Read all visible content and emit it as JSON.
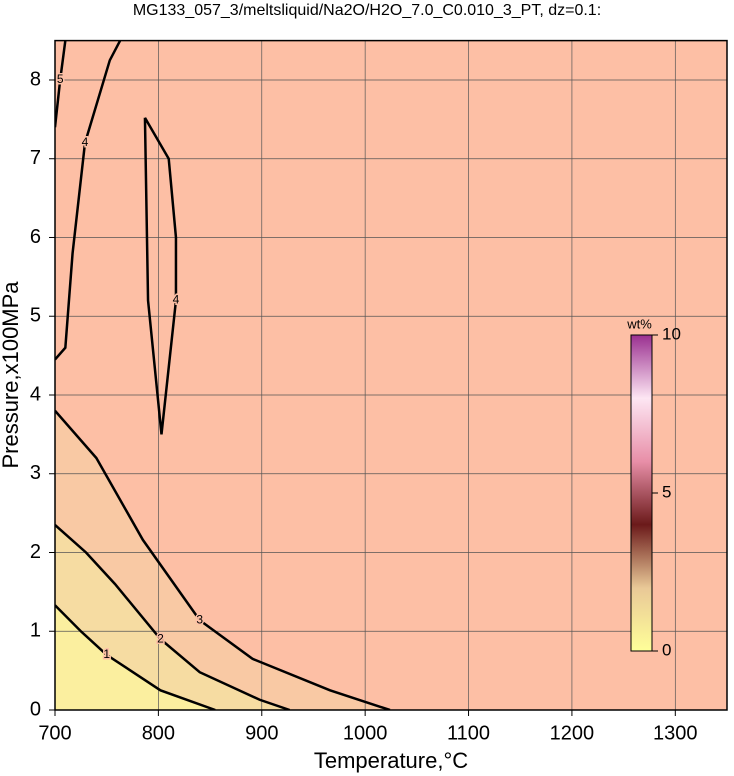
{
  "chart_data": {
    "type": "contour",
    "title": "MG133_057_3/meltsliquid/Na2O/H2O_7.0_C0.010_3_PT, dz=0.1:",
    "x_label": "Temperature,°C",
    "y_label": "Pressure,x100MPa",
    "xlim": [
      700,
      1350
    ],
    "ylim": [
      0,
      8.5
    ],
    "xticks": [
      700,
      800,
      900,
      1000,
      1100,
      1200,
      1300
    ],
    "yticks": [
      0,
      1,
      2,
      3,
      4,
      5,
      6,
      7,
      8
    ],
    "grid": true,
    "background": "#fdbfa5",
    "contours": [
      {
        "level": 3,
        "fill": "#f9c9a4",
        "x": [
          700,
          740,
          785,
          840,
          891,
          966,
          1024
        ],
        "y": [
          3.8,
          3.2,
          2.16,
          1.14,
          0.65,
          0.25,
          0
        ]
      },
      {
        "level": 2,
        "fill": "#f6dca2",
        "x": [
          700,
          730,
          758,
          802,
          840,
          898,
          927
        ],
        "y": [
          2.35,
          2.0,
          1.6,
          0.9,
          0.48,
          0.13,
          0
        ]
      },
      {
        "level": 1,
        "fill": "#fbef9f",
        "x": [
          700,
          725,
          750,
          802,
          855
        ],
        "y": [
          1.33,
          1.0,
          0.7,
          0.25,
          0
        ]
      },
      {
        "level": 4,
        "fill": null,
        "x": [
          700,
          710,
          717,
          729,
          753,
          763
        ],
        "y": [
          4.45,
          4.6,
          5.8,
          7.2,
          8.25,
          8.5
        ]
      },
      {
        "level": 4,
        "fill": null,
        "x": [
          787,
          790,
          803,
          817,
          817,
          810,
          787
        ],
        "y": [
          7.52,
          5.2,
          3.5,
          5.2,
          6.0,
          7.0,
          7.52
        ]
      },
      {
        "level": 5,
        "fill": null,
        "x": [
          700,
          705,
          710
        ],
        "y": [
          7.4,
          8.0,
          8.5
        ]
      }
    ],
    "colorbar": {
      "label": "wt%",
      "lim": [
        0,
        10
      ],
      "ticks": [
        0,
        5,
        10
      ],
      "colors": [
        "#ffff99",
        "#e9c897",
        "#6b1a1a",
        "#e88fa8",
        "#fde6f3",
        "#9a3090"
      ]
    }
  }
}
